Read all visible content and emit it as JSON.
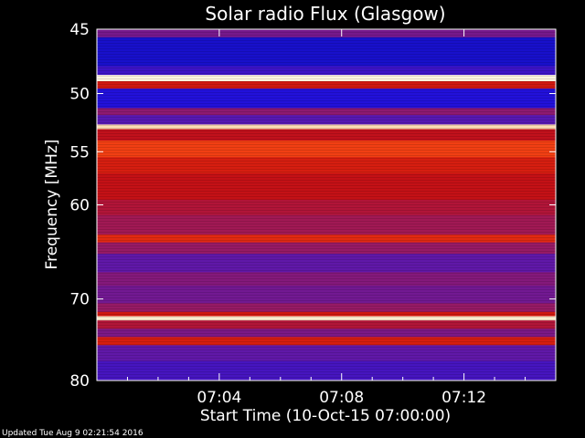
{
  "chart_data": {
    "type": "heatmap",
    "title": "Solar radio Flux (Glasgow)",
    "ylabel": "Frequency [MHz]",
    "xlabel": "Start Time (10-Oct-15 07:00:00)",
    "y_scale": "log",
    "ylim": [
      45,
      80
    ],
    "y_ticks": [
      {
        "value": 45,
        "label": "45"
      },
      {
        "value": 50,
        "label": "50"
      },
      {
        "value": 55,
        "label": "55"
      },
      {
        "value": 60,
        "label": "60"
      },
      {
        "value": 70,
        "label": "70"
      },
      {
        "value": 80,
        "label": "80"
      }
    ],
    "xlim_minutes": [
      0,
      15
    ],
    "x_ticks": [
      {
        "value": 4,
        "label": "07:04"
      },
      {
        "value": 8,
        "label": "07:08"
      },
      {
        "value": 12,
        "label": "07:12"
      }
    ],
    "colorscale": [
      "#10105a",
      "#1a10e0",
      "#5a18b0",
      "#9a1a60",
      "#c81010",
      "#f03a10",
      "#ffb060",
      "#fff6e0"
    ],
    "frequency_bands": [
      {
        "from": 45.0,
        "to": 45.6,
        "level": 0.35
      },
      {
        "from": 45.6,
        "to": 47.8,
        "level": 0.12
      },
      {
        "from": 47.8,
        "to": 48.5,
        "level": 0.22
      },
      {
        "from": 48.5,
        "to": 49.0,
        "level": 1.0
      },
      {
        "from": 49.0,
        "to": 49.6,
        "level": 0.6
      },
      {
        "from": 49.6,
        "to": 51.2,
        "level": 0.16
      },
      {
        "from": 51.2,
        "to": 51.8,
        "level": 0.4
      },
      {
        "from": 51.8,
        "to": 52.6,
        "level": 0.28
      },
      {
        "from": 52.6,
        "to": 53.0,
        "level": 0.95
      },
      {
        "from": 53.0,
        "to": 54.0,
        "level": 0.55
      },
      {
        "from": 54.0,
        "to": 55.5,
        "level": 0.72
      },
      {
        "from": 55.5,
        "to": 57.0,
        "level": 0.62
      },
      {
        "from": 57.0,
        "to": 59.5,
        "level": 0.56
      },
      {
        "from": 59.5,
        "to": 61.0,
        "level": 0.5
      },
      {
        "from": 61.0,
        "to": 63.0,
        "level": 0.45
      },
      {
        "from": 63.0,
        "to": 63.8,
        "level": 0.66
      },
      {
        "from": 63.8,
        "to": 65.0,
        "level": 0.42
      },
      {
        "from": 65.0,
        "to": 67.0,
        "level": 0.3
      },
      {
        "from": 67.0,
        "to": 68.5,
        "level": 0.38
      },
      {
        "from": 68.5,
        "to": 70.5,
        "level": 0.34
      },
      {
        "from": 70.5,
        "to": 71.5,
        "level": 0.42
      },
      {
        "from": 71.5,
        "to": 72.0,
        "level": 0.6
      },
      {
        "from": 72.0,
        "to": 72.5,
        "level": 0.98
      },
      {
        "from": 72.5,
        "to": 73.5,
        "level": 0.5
      },
      {
        "from": 73.5,
        "to": 74.5,
        "level": 0.36
      },
      {
        "from": 74.5,
        "to": 75.5,
        "level": 0.62
      },
      {
        "from": 75.5,
        "to": 77.5,
        "level": 0.3
      },
      {
        "from": 77.5,
        "to": 80.0,
        "level": 0.24
      }
    ]
  },
  "footer": {
    "updated": "Updated Tue Aug  9 02:21:54 2016"
  }
}
